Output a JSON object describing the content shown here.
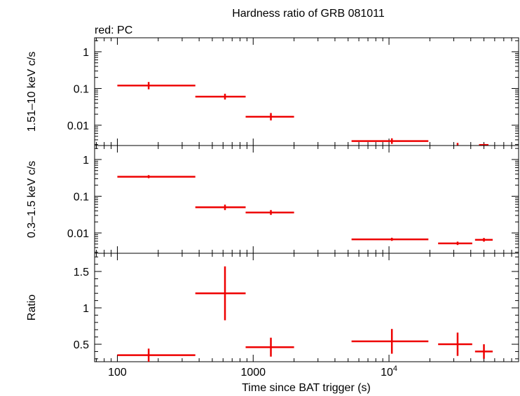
{
  "chart_data": {
    "type": "scatter",
    "title": "Hardness ratio of GRB 081011",
    "subtitle": "red: PC",
    "xlabel": "Time since BAT trigger (s)",
    "xscale": "log",
    "xlim": [
      68,
      90000
    ],
    "x_tick_labels": [
      {
        "value": 100,
        "text": "100"
      },
      {
        "value": 1000,
        "text": "1000"
      },
      {
        "value": 10000,
        "base": "10",
        "exp": "4"
      }
    ],
    "colors": {
      "series": "#ee0000",
      "axes": "#000000"
    },
    "panels": [
      {
        "id": "hard",
        "ylabel": "1.51–10 keV c/s",
        "yscale": "log",
        "ylim": [
          0.0028,
          2.4
        ],
        "ytick_labels": [
          {
            "value": 1,
            "text": "1"
          },
          {
            "value": 0.1,
            "text": "0.1"
          },
          {
            "value": 0.01,
            "text": "0.01"
          }
        ],
        "points": [
          {
            "x": 170,
            "xlo": 100,
            "xhi": 375,
            "y": 0.12,
            "ylo": 0.095,
            "yhi": 0.15
          },
          {
            "x": 620,
            "xlo": 375,
            "xhi": 880,
            "y": 0.06,
            "ylo": 0.05,
            "yhi": 0.072
          },
          {
            "x": 1350,
            "xlo": 880,
            "xhi": 2000,
            "y": 0.017,
            "ylo": 0.0135,
            "yhi": 0.0215
          },
          {
            "x": 10500,
            "xlo": 5300,
            "xhi": 19500,
            "y": 0.0037,
            "ylo": 0.0031,
            "yhi": 0.0044
          },
          {
            "x": 32000,
            "xlo": 32000,
            "xhi": 32000,
            "y": 0.003,
            "ylo": 0.0028,
            "yhi": 0.0033
          },
          {
            "x": 50000,
            "xlo": 46000,
            "xhi": 54000,
            "y": 0.0029,
            "ylo": 0.0028,
            "yhi": 0.0031
          }
        ]
      },
      {
        "id": "soft",
        "ylabel": "0.3–1.5 keV c/s",
        "yscale": "log",
        "ylim": [
          0.0028,
          2.4
        ],
        "ytick_labels": [
          {
            "value": 1,
            "text": "1"
          },
          {
            "value": 0.1,
            "text": "0.1"
          },
          {
            "value": 0.01,
            "text": "0.01"
          }
        ],
        "points": [
          {
            "x": 170,
            "xlo": 100,
            "xhi": 375,
            "y": 0.34,
            "ylo": 0.31,
            "yhi": 0.375
          },
          {
            "x": 620,
            "xlo": 375,
            "xhi": 880,
            "y": 0.05,
            "ylo": 0.042,
            "yhi": 0.059
          },
          {
            "x": 1350,
            "xlo": 880,
            "xhi": 2000,
            "y": 0.036,
            "ylo": 0.031,
            "yhi": 0.042
          },
          {
            "x": 10500,
            "xlo": 5300,
            "xhi": 19500,
            "y": 0.0067,
            "ylo": 0.0061,
            "yhi": 0.0074
          },
          {
            "x": 32000,
            "xlo": 23000,
            "xhi": 41000,
            "y": 0.0052,
            "ylo": 0.0047,
            "yhi": 0.0058
          },
          {
            "x": 50000,
            "xlo": 43000,
            "xhi": 58000,
            "y": 0.0065,
            "ylo": 0.0058,
            "yhi": 0.0073
          }
        ]
      },
      {
        "id": "ratio",
        "ylabel": "Ratio",
        "yscale": "linear",
        "ylim": [
          0.26,
          1.75
        ],
        "ytick_labels": [
          {
            "value": 1.5,
            "text": "1.5"
          },
          {
            "value": 1,
            "text": "1"
          },
          {
            "value": 0.5,
            "text": "0.5"
          }
        ],
        "points": [
          {
            "x": 170,
            "xlo": 100,
            "xhi": 375,
            "y": 0.35,
            "ylo": 0.26,
            "yhi": 0.44
          },
          {
            "x": 620,
            "xlo": 375,
            "xhi": 880,
            "y": 1.2,
            "ylo": 0.83,
            "yhi": 1.57
          },
          {
            "x": 1350,
            "xlo": 880,
            "xhi": 2000,
            "y": 0.46,
            "ylo": 0.33,
            "yhi": 0.59
          },
          {
            "x": 10500,
            "xlo": 5300,
            "xhi": 19500,
            "y": 0.54,
            "ylo": 0.37,
            "yhi": 0.71
          },
          {
            "x": 32000,
            "xlo": 23000,
            "xhi": 41000,
            "y": 0.5,
            "ylo": 0.34,
            "yhi": 0.66
          },
          {
            "x": 50000,
            "xlo": 43000,
            "xhi": 58000,
            "y": 0.4,
            "ylo": 0.3,
            "yhi": 0.5
          }
        ]
      }
    ]
  }
}
